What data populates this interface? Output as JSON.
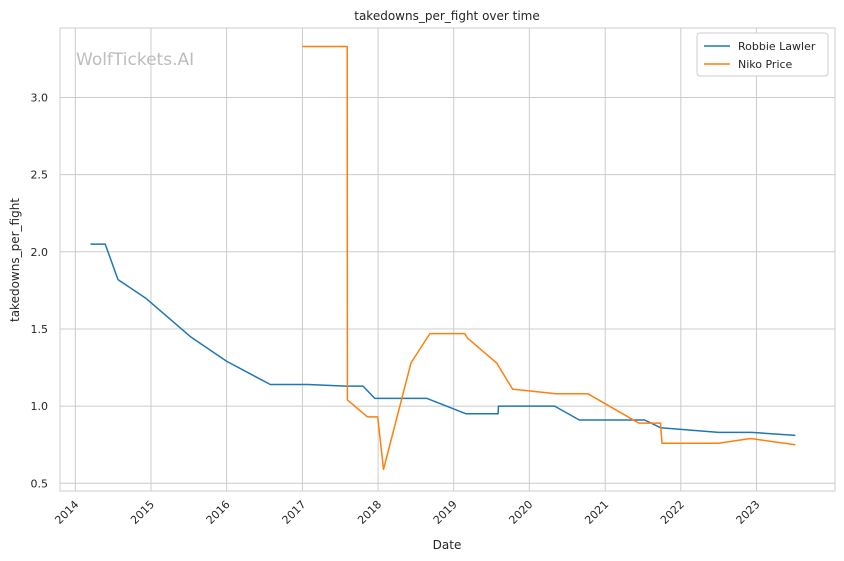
{
  "chart_data": {
    "type": "line",
    "title": "takedowns_per_fight over time",
    "xlabel": "Date",
    "ylabel": "takedowns_per_fight",
    "watermark": "WolfTickets.AI",
    "xlim": [
      "2013-10-19",
      "2024-01-15"
    ],
    "ylim": [
      0.45,
      3.45
    ],
    "x_ticks": [
      "2014",
      "2015",
      "2016",
      "2017",
      "2018",
      "2019",
      "2020",
      "2021",
      "2022",
      "2023"
    ],
    "y_ticks": [
      "0.5",
      "1.0",
      "1.5",
      "2.0",
      "2.5",
      "3.0"
    ],
    "y_tick_values": [
      0.5,
      1.0,
      1.5,
      2.0,
      2.5,
      3.0
    ],
    "grid": true,
    "legend_position": "top-right",
    "series": [
      {
        "name": "Robbie Lawler",
        "color": "#1f77b4",
        "points": [
          [
            "2014-03-15",
            2.05
          ],
          [
            "2014-05-25",
            2.05
          ],
          [
            "2014-07-26",
            1.82
          ],
          [
            "2014-12-06",
            1.7
          ],
          [
            "2015-07-11",
            1.45
          ],
          [
            "2016-01-02",
            1.29
          ],
          [
            "2016-07-30",
            1.14
          ],
          [
            "2017-01-28",
            1.14
          ],
          [
            "2017-07-29",
            1.13
          ],
          [
            "2017-10-20",
            1.13
          ],
          [
            "2017-12-16",
            1.05
          ],
          [
            "2018-08-25",
            1.05
          ],
          [
            "2019-03-02",
            0.95
          ],
          [
            "2019-08-03",
            0.95
          ],
          [
            "2019-08-05",
            1.0
          ],
          [
            "2020-05-02",
            1.0
          ],
          [
            "2020-08-29",
            0.91
          ],
          [
            "2021-07-10",
            0.91
          ],
          [
            "2021-09-25",
            0.86
          ],
          [
            "2022-07-02",
            0.83
          ],
          [
            "2022-12-10",
            0.83
          ],
          [
            "2023-07-08",
            0.81
          ]
        ]
      },
      {
        "name": "Niko Price",
        "color": "#ff7f0e",
        "points": [
          [
            "2017-01-01",
            3.33
          ],
          [
            "2017-08-05",
            3.33
          ],
          [
            "2017-08-06",
            1.04
          ],
          [
            "2017-11-11",
            0.93
          ],
          [
            "2017-12-30",
            0.93
          ],
          [
            "2018-01-27",
            0.59
          ],
          [
            "2018-06-09",
            1.28
          ],
          [
            "2018-09-08",
            1.47
          ],
          [
            "2019-02-23",
            1.47
          ],
          [
            "2019-03-09",
            1.44
          ],
          [
            "2019-07-27",
            1.28
          ],
          [
            "2019-10-12",
            1.11
          ],
          [
            "2020-05-09",
            1.08
          ],
          [
            "2020-09-05",
            1.08
          ],
          [
            "2020-10-10",
            1.08
          ],
          [
            "2021-06-12",
            0.89
          ],
          [
            "2021-09-25",
            0.89
          ],
          [
            "2021-10-02",
            0.76
          ],
          [
            "2022-07-02",
            0.76
          ],
          [
            "2022-12-03",
            0.79
          ],
          [
            "2023-07-08",
            0.75
          ]
        ]
      }
    ]
  }
}
